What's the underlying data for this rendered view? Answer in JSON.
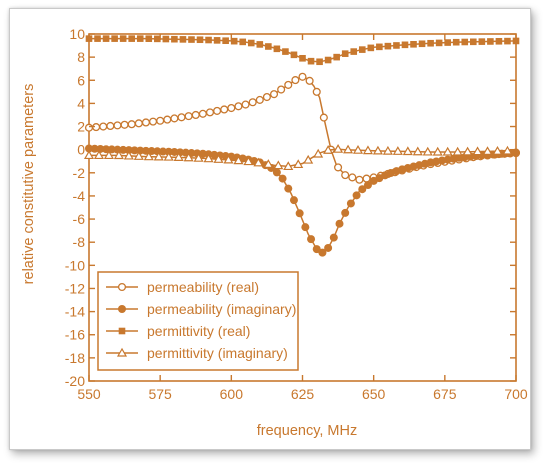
{
  "chart_data": {
    "type": "line",
    "title": "",
    "xlabel": "frequency, MHz",
    "ylabel": "relative constitutive parameters",
    "xlim": [
      550,
      700
    ],
    "ylim": [
      -20,
      10
    ],
    "xticks": [
      550,
      575,
      600,
      625,
      650,
      675,
      700
    ],
    "yticks": [
      10,
      8,
      6,
      4,
      2,
      0,
      -2,
      -4,
      -6,
      -8,
      -10,
      -12,
      -14,
      -16,
      -18,
      -20
    ],
    "grid": false,
    "legend_position": "bottom-left",
    "color": "#c8782e",
    "series": [
      {
        "name": "permeability (real)",
        "marker": "open-circle",
        "x": [
          550,
          555,
          560,
          565,
          570,
          575,
          580,
          585,
          590,
          595,
          600,
          605,
          610,
          615,
          620,
          623,
          625,
          627,
          629,
          631,
          633,
          635,
          637,
          640,
          645,
          650,
          655,
          660,
          665,
          670,
          675,
          680,
          685,
          690,
          695,
          700
        ],
        "values": [
          1.9,
          2.0,
          2.1,
          2.2,
          2.35,
          2.5,
          2.7,
          2.9,
          3.1,
          3.35,
          3.6,
          3.9,
          4.3,
          4.8,
          5.6,
          6.1,
          6.3,
          6.1,
          5.5,
          4.5,
          2.2,
          0.0,
          -1.4,
          -2.2,
          -2.6,
          -2.4,
          -2.1,
          -1.8,
          -1.5,
          -1.25,
          -1.05,
          -0.85,
          -0.65,
          -0.5,
          -0.35,
          -0.25
        ]
      },
      {
        "name": "permeability (imaginary)",
        "marker": "filled-circle",
        "x": [
          550,
          560,
          570,
          580,
          590,
          600,
          605,
          610,
          615,
          618,
          621,
          624,
          627,
          630,
          632,
          634,
          636,
          638,
          641,
          645,
          650,
          655,
          660,
          665,
          670,
          675,
          680,
          690,
          700
        ],
        "values": [
          0.1,
          0.0,
          -0.1,
          -0.2,
          -0.35,
          -0.6,
          -0.8,
          -1.1,
          -1.7,
          -2.5,
          -3.8,
          -5.5,
          -7.3,
          -8.6,
          -8.9,
          -8.5,
          -7.6,
          -6.4,
          -5.0,
          -3.6,
          -2.7,
          -2.1,
          -1.7,
          -1.4,
          -1.1,
          -0.9,
          -0.7,
          -0.45,
          -0.3
        ]
      },
      {
        "name": "permittivity (real)",
        "marker": "filled-square",
        "x": [
          550,
          560,
          570,
          580,
          590,
          600,
          605,
          610,
          615,
          620,
          625,
          628,
          631,
          634,
          637,
          640,
          645,
          650,
          660,
          670,
          680,
          690,
          700
        ],
        "values": [
          9.6,
          9.6,
          9.6,
          9.55,
          9.5,
          9.4,
          9.3,
          9.1,
          8.8,
          8.4,
          7.9,
          7.65,
          7.6,
          7.75,
          8.0,
          8.3,
          8.6,
          8.85,
          9.05,
          9.2,
          9.3,
          9.35,
          9.4
        ]
      },
      {
        "name": "permittivity (imaginary)",
        "marker": "open-triangle",
        "x": [
          550,
          560,
          570,
          580,
          590,
          600,
          605,
          610,
          615,
          620,
          625,
          628,
          631,
          634,
          637,
          640,
          645,
          650,
          660,
          670,
          680,
          690,
          700
        ],
        "values": [
          -0.5,
          -0.5,
          -0.6,
          -0.65,
          -0.75,
          -0.9,
          -1.0,
          -1.15,
          -1.35,
          -1.45,
          -1.2,
          -0.75,
          -0.3,
          -0.05,
          0.05,
          0.0,
          -0.05,
          -0.1,
          -0.15,
          -0.2,
          -0.2,
          -0.15,
          -0.1
        ]
      }
    ]
  }
}
